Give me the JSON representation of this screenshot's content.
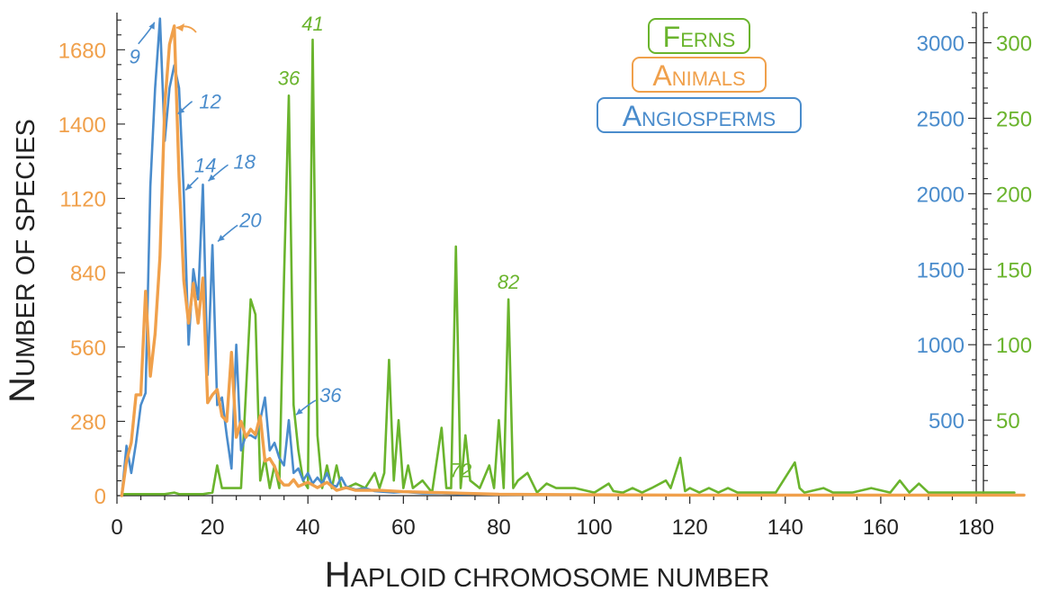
{
  "colors": {
    "ferns": "#6ab42d",
    "animals": "#f0a04b",
    "angiosperms": "#4a8ccc",
    "axis": "#222222"
  },
  "chart_data": {
    "type": "line",
    "xlabel": "Haploid chromosome number",
    "ylabel": "Number of species",
    "xlim": [
      0,
      190
    ],
    "x_ticks": [
      0,
      20,
      40,
      60,
      80,
      100,
      120,
      140,
      160,
      180
    ],
    "axes": {
      "animals": {
        "side": "left",
        "ylim": [
          0,
          1820
        ],
        "ticks": [
          0,
          280,
          560,
          840,
          1120,
          1400,
          1680
        ]
      },
      "angiosperms": {
        "side": "right-inner",
        "ylim": [
          0,
          3200
        ],
        "ticks": [
          500,
          1000,
          1500,
          2000,
          2500,
          3000
        ]
      },
      "ferns": {
        "side": "right-outer",
        "ylim": [
          0,
          320
        ],
        "ticks": [
          50,
          100,
          150,
          200,
          250,
          300
        ]
      }
    },
    "legend": {
      "position": "top-right",
      "entries": [
        "Ferns",
        "Animals",
        "Angiosperms"
      ]
    },
    "series": [
      {
        "name": "Angiosperms",
        "color_key": "angiosperms",
        "axis": "angiosperms",
        "x": [
          1,
          2,
          3,
          4,
          5,
          6,
          7,
          8,
          9,
          10,
          11,
          12,
          13,
          14,
          15,
          16,
          17,
          18,
          19,
          20,
          21,
          22,
          23,
          24,
          25,
          26,
          27,
          28,
          29,
          30,
          31,
          32,
          33,
          34,
          35,
          36,
          37,
          38,
          39,
          40,
          41,
          42,
          43,
          44,
          45,
          46,
          47,
          48,
          49,
          50,
          52,
          54,
          56,
          58,
          60,
          64,
          68,
          72,
          76,
          80,
          90,
          100,
          120,
          140,
          160,
          180
        ],
        "y": [
          0,
          330,
          150,
          350,
          600,
          680,
          2050,
          2700,
          3160,
          2350,
          2700,
          2850,
          2700,
          2000,
          1000,
          1500,
          1300,
          2060,
          800,
          1660,
          600,
          650,
          400,
          180,
          1000,
          300,
          400,
          400,
          380,
          500,
          650,
          300,
          350,
          250,
          200,
          500,
          150,
          180,
          100,
          150,
          80,
          120,
          80,
          150,
          70,
          60,
          120,
          60,
          50,
          40,
          50,
          30,
          25,
          20,
          25,
          15,
          15,
          10,
          10,
          8,
          5,
          5,
          3,
          3,
          2,
          2
        ]
      },
      {
        "name": "Animals",
        "color_key": "animals",
        "axis": "animals",
        "x": [
          1,
          2,
          3,
          4,
          5,
          6,
          7,
          8,
          9,
          10,
          11,
          12,
          13,
          14,
          15,
          16,
          17,
          18,
          19,
          20,
          21,
          22,
          23,
          24,
          25,
          26,
          27,
          28,
          29,
          30,
          31,
          32,
          33,
          34,
          35,
          36,
          37,
          38,
          40,
          42,
          44,
          46,
          48,
          50,
          55,
          60,
          70,
          80,
          100,
          120,
          140,
          160,
          180,
          190
        ],
        "y": [
          0,
          130,
          200,
          380,
          380,
          770,
          450,
          610,
          900,
          1470,
          1700,
          1770,
          1200,
          810,
          650,
          800,
          650,
          820,
          350,
          380,
          400,
          300,
          280,
          540,
          220,
          280,
          220,
          250,
          230,
          300,
          130,
          140,
          110,
          60,
          40,
          40,
          60,
          35,
          50,
          30,
          50,
          20,
          30,
          20,
          20,
          15,
          10,
          5,
          3,
          2,
          2,
          2,
          2,
          2
        ]
      },
      {
        "name": "Ferns",
        "color_key": "ferns",
        "axis": "ferns",
        "x": [
          1,
          2,
          4,
          6,
          8,
          10,
          12,
          13,
          14,
          16,
          18,
          20,
          21,
          22,
          24,
          26,
          28,
          29,
          30,
          31,
          32,
          33,
          34,
          35,
          36,
          37,
          38,
          39,
          40,
          41,
          42,
          43,
          44,
          45,
          46,
          47,
          48,
          50,
          52,
          54,
          55,
          56,
          57,
          58,
          59,
          60,
          61,
          62,
          64,
          66,
          68,
          69,
          70,
          71,
          72,
          73,
          74,
          76,
          78,
          79,
          80,
          81,
          82,
          83,
          84,
          86,
          88,
          90,
          92,
          94,
          96,
          100,
          103,
          104,
          106,
          108,
          110,
          112,
          115,
          116,
          118,
          119,
          120,
          122,
          124,
          126,
          128,
          130,
          134,
          138,
          142,
          143,
          144,
          148,
          150,
          154,
          158,
          162,
          164,
          166,
          168,
          170,
          175,
          180,
          188
        ],
        "y": [
          1,
          1,
          1,
          1,
          1,
          1,
          2,
          1,
          1,
          1,
          1,
          2,
          20,
          5,
          5,
          5,
          130,
          120,
          10,
          25,
          5,
          20,
          5,
          145,
          265,
          60,
          30,
          10,
          5,
          302,
          40,
          5,
          20,
          5,
          20,
          5,
          5,
          8,
          5,
          15,
          5,
          15,
          90,
          10,
          50,
          5,
          20,
          5,
          10,
          2,
          45,
          5,
          5,
          165,
          5,
          40,
          10,
          5,
          20,
          5,
          50,
          5,
          130,
          5,
          10,
          15,
          2,
          8,
          5,
          5,
          5,
          2,
          8,
          3,
          2,
          5,
          2,
          5,
          10,
          5,
          25,
          3,
          5,
          2,
          5,
          2,
          5,
          2,
          2,
          2,
          22,
          5,
          2,
          5,
          2,
          2,
          5,
          2,
          10,
          2,
          8,
          2,
          2,
          2,
          2
        ]
      }
    ],
    "annotations": [
      {
        "text": "9",
        "series": "Angiosperms",
        "x": 9
      },
      {
        "text": "12",
        "series": "Angiosperms",
        "x": 12
      },
      {
        "text": "14",
        "series": "Angiosperms",
        "x": 14
      },
      {
        "text": "18",
        "series": "Angiosperms",
        "x": 18
      },
      {
        "text": "20",
        "series": "Angiosperms",
        "x": 20
      },
      {
        "text": "36",
        "series": "Angiosperms",
        "x": 36
      },
      {
        "text": "36",
        "series": "Ferns",
        "x": 36
      },
      {
        "text": "41",
        "series": "Ferns",
        "x": 41
      },
      {
        "text": "72",
        "series": "Ferns",
        "x": 72
      },
      {
        "text": "82",
        "series": "Ferns",
        "x": 82
      }
    ]
  }
}
